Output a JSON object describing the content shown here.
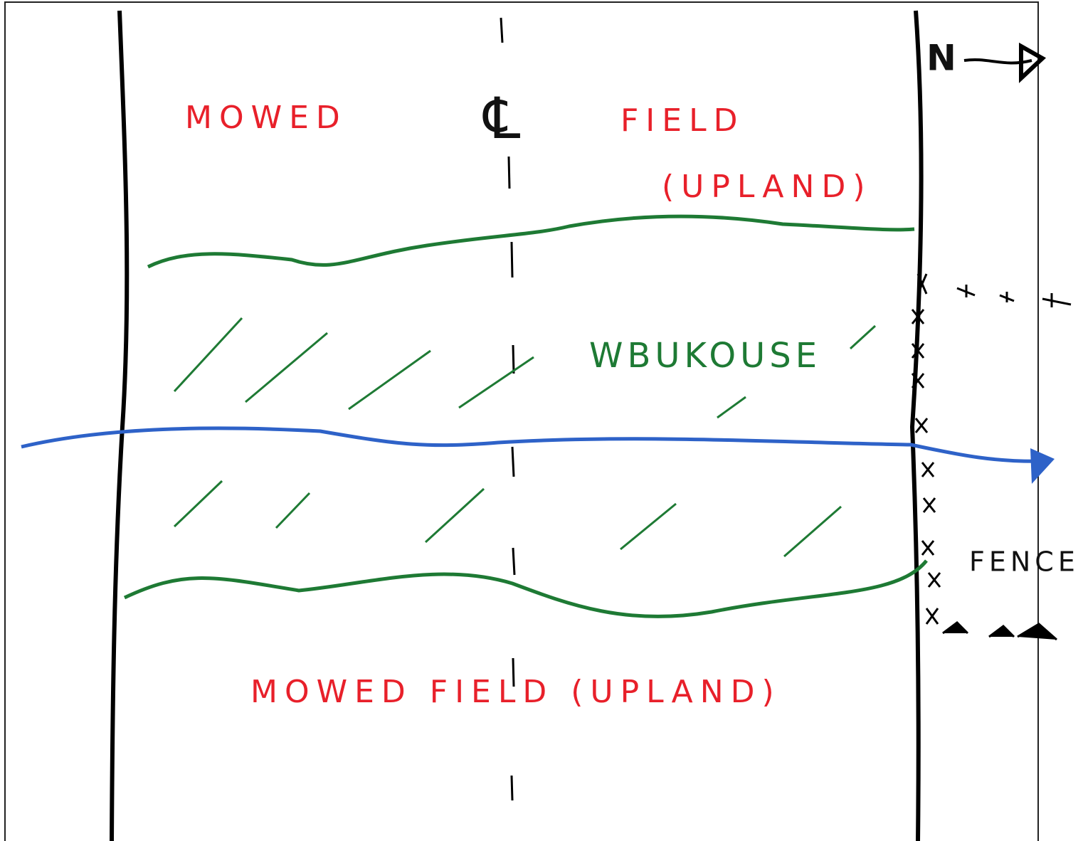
{
  "labels": {
    "top_left": "MOWED",
    "top_right": "FIELD",
    "top_sub": "(UPLAND)",
    "centerline": "℄",
    "middle": "WBUKOUSE",
    "bottom": "MOWED FIELD (UPLAND)",
    "north": "N",
    "fence": "FENCE"
  }
}
